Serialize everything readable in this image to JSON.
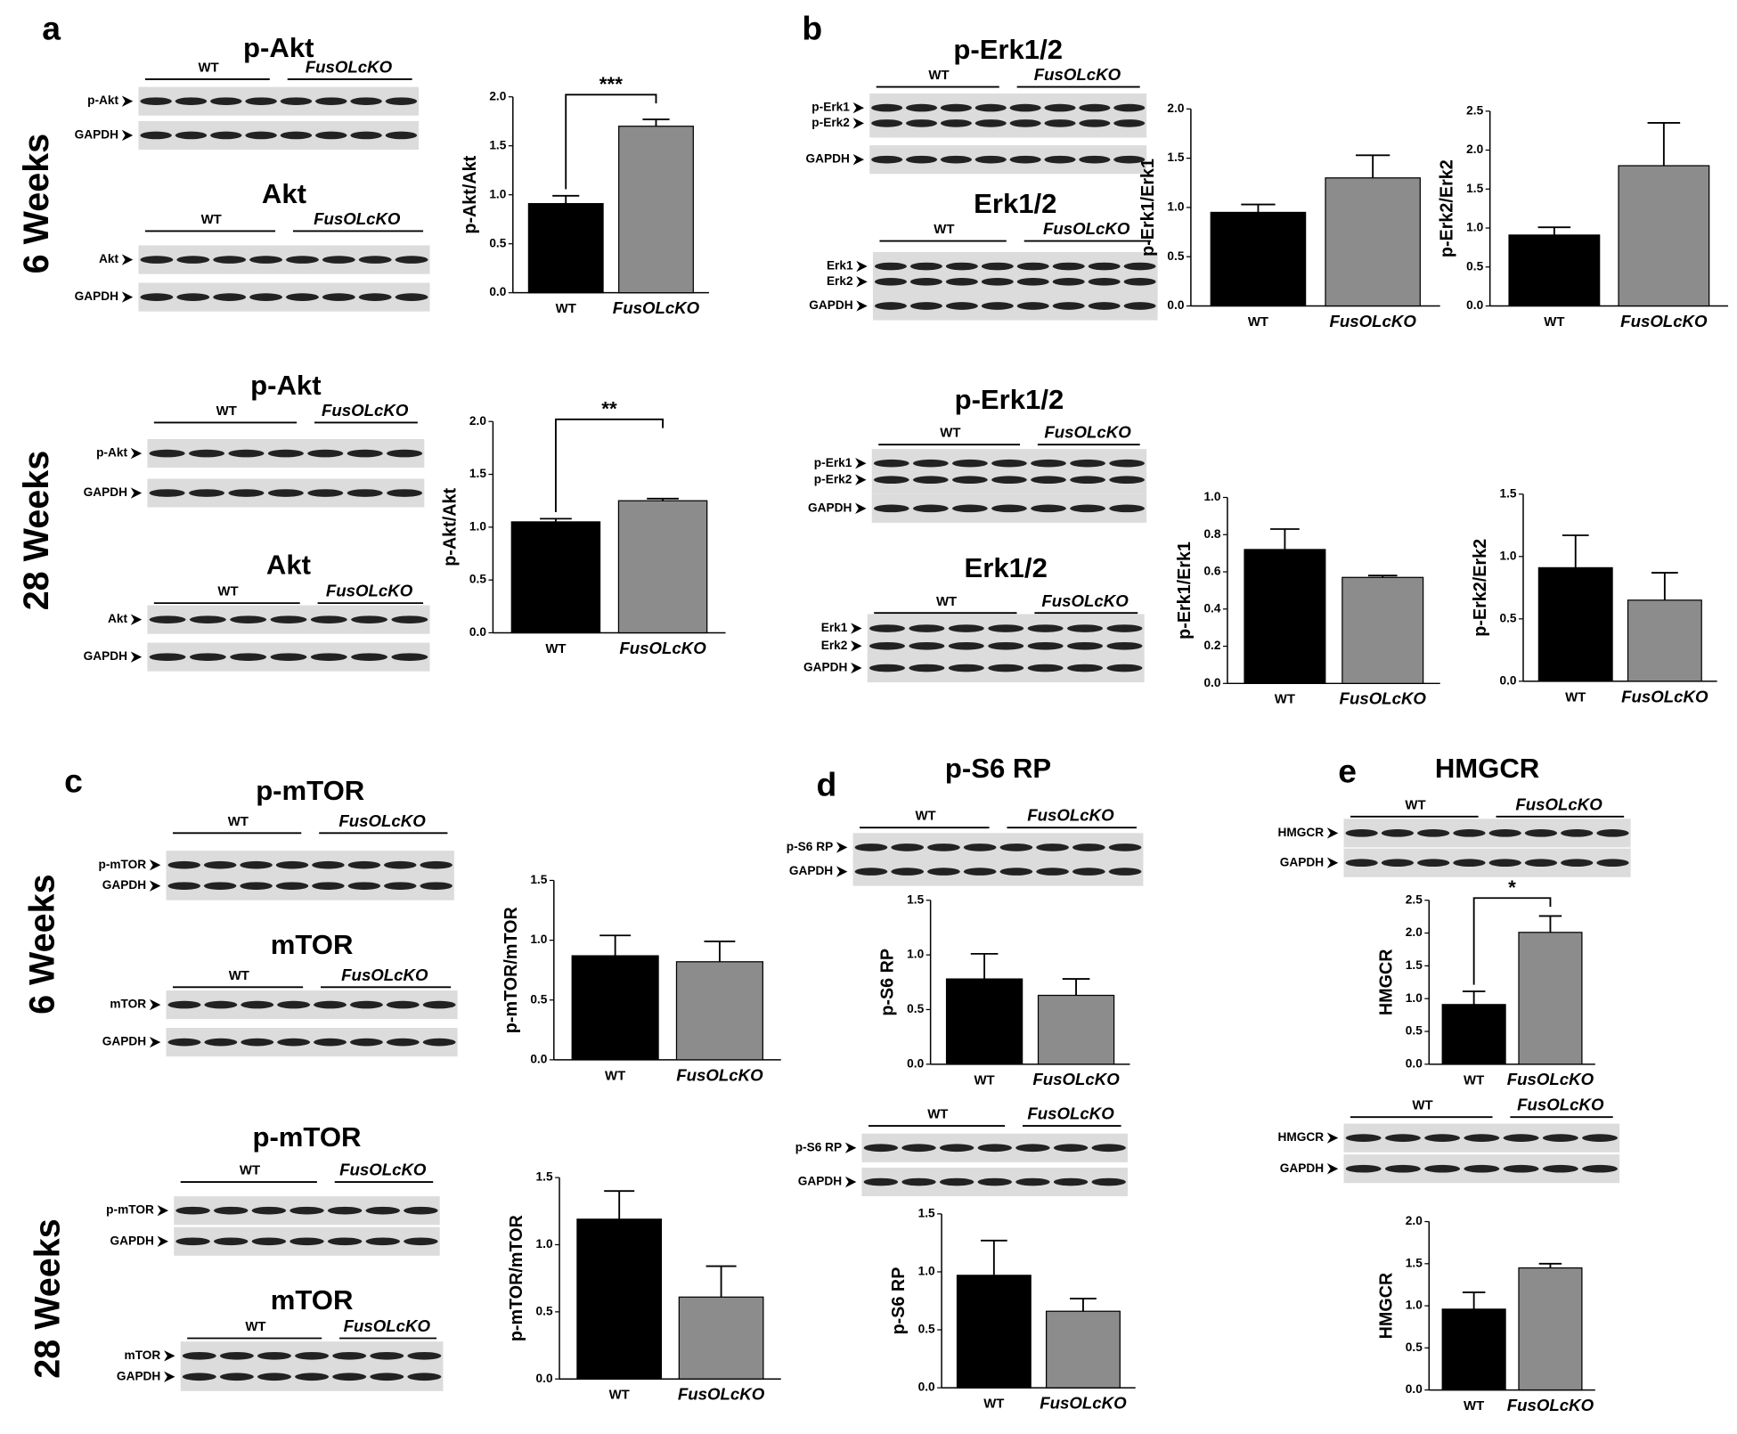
{
  "panels": {
    "a": "a",
    "b": "b",
    "c": "c",
    "d": "d",
    "e": "e"
  },
  "row_labels": [
    "6 Weeks",
    "28 Weeks",
    "6 Weeks",
    "28 Weeks"
  ],
  "blots": [
    {
      "title": "p-Akt",
      "groups": [
        "WT",
        "FusOLcKO"
      ],
      "rows": [
        "p-Akt",
        "GAPDH"
      ]
    },
    {
      "title": "Akt",
      "groups": [
        "WT",
        "FusOLcKO"
      ],
      "rows": [
        "Akt",
        "GAPDH"
      ]
    },
    {
      "title": "p-Akt",
      "groups": [
        "WT",
        "FusOLcKO"
      ],
      "rows": [
        "p-Akt",
        "GAPDH"
      ]
    },
    {
      "title": "Akt",
      "groups": [
        "WT",
        "FusOLcKO"
      ],
      "rows": [
        "Akt",
        "GAPDH"
      ]
    },
    {
      "title": "p-Erk1/2",
      "groups": [
        "WT",
        "FusOLcKO"
      ],
      "rows": [
        "p-Erk1",
        "p-Erk2",
        "GAPDH"
      ]
    },
    {
      "title": "Erk1/2",
      "groups": [
        "WT",
        "FusOLcKO"
      ],
      "rows": [
        "Erk1",
        "Erk2",
        "GAPDH"
      ]
    },
    {
      "title": "p-Erk1/2",
      "groups": [
        "WT",
        "FusOLcKO"
      ],
      "rows": [
        "p-Erk1",
        "p-Erk2",
        "GAPDH"
      ]
    },
    {
      "title": "Erk1/2",
      "groups": [
        "WT",
        "FusOLcKO"
      ],
      "rows": [
        "Erk1",
        "Erk2",
        "GAPDH"
      ]
    },
    {
      "title": "p-mTOR",
      "groups": [
        "WT",
        "FusOLcKO"
      ],
      "rows": [
        "p-mTOR",
        "GAPDH"
      ]
    },
    {
      "title": "mTOR",
      "groups": [
        "WT",
        "FusOLcKO"
      ],
      "rows": [
        "mTOR",
        "GAPDH"
      ]
    },
    {
      "title": "p-mTOR",
      "groups": [
        "WT",
        "FusOLcKO"
      ],
      "rows": [
        "p-mTOR",
        "GAPDH"
      ]
    },
    {
      "title": "mTOR",
      "groups": [
        "WT",
        "FusOLcKO"
      ],
      "rows": [
        "mTOR",
        "GAPDH"
      ]
    },
    {
      "title": "p-S6 RP",
      "groups": [
        "WT",
        "FusOLcKO"
      ],
      "rows": [
        "p-S6 RP",
        "GAPDH"
      ]
    },
    {
      "groups": [
        "WT",
        "FusOLcKO"
      ],
      "rows": [
        "p-S6 RP",
        "GAPDH"
      ]
    },
    {
      "title": "HMGCR",
      "groups": [
        "WT",
        "FusOLcKO"
      ],
      "rows": [
        "HMGCR",
        "GAPDH"
      ]
    },
    {
      "groups": [
        "WT",
        "FusOLcKO"
      ],
      "rows": [
        "HMGCR",
        "GAPDH"
      ]
    }
  ],
  "chart_data": [
    {
      "type": "bar",
      "ylabel": "p-Akt/Akt",
      "categories": [
        "WT",
        "FusOLcKO"
      ],
      "values": [
        0.91,
        1.7
      ],
      "errors": [
        0.08,
        0.07
      ],
      "colors": [
        "#000000",
        "#8c8c8c"
      ],
      "significance": "***",
      "ylim": [
        0,
        2
      ],
      "yticks": [
        {
          "value": 0,
          "label": "0.0"
        },
        0.5,
        {
          "value": 1,
          "label": "1.0"
        },
        1.5,
        {
          "value": 2,
          "label": "2.0"
        }
      ]
    },
    {
      "type": "bar",
      "ylabel": "p-Akt/Akt",
      "categories": [
        "WT",
        "FusOLcKO"
      ],
      "values": [
        1.05,
        1.25
      ],
      "errors": [
        0.03,
        0.02
      ],
      "colors": [
        "#000000",
        "#8c8c8c"
      ],
      "significance": "**",
      "ylim": [
        0,
        2
      ],
      "yticks": [
        {
          "value": 0,
          "label": "0.0"
        },
        0.5,
        {
          "value": 1,
          "label": "1.0"
        },
        1.5,
        {
          "value": 2,
          "label": "2.0"
        }
      ]
    },
    {
      "type": "bar",
      "ylabel": "p-Erk1/Erk1",
      "categories": [
        "WT",
        "FusOLcKO"
      ],
      "values": [
        0.95,
        1.3
      ],
      "errors": [
        0.08,
        0.23
      ],
      "colors": [
        "#000000",
        "#8c8c8c"
      ],
      "ylim": [
        0,
        2
      ],
      "yticks": [
        {
          "value": 0,
          "label": "0.0"
        },
        0.5,
        {
          "value": 1,
          "label": "1.0"
        },
        1.5,
        {
          "value": 2,
          "label": "2.0"
        }
      ]
    },
    {
      "type": "bar",
      "ylabel": "p-Erk2/Erk2",
      "categories": [
        "WT",
        "FusOLcKO"
      ],
      "values": [
        0.91,
        1.8
      ],
      "errors": [
        0.1,
        0.55
      ],
      "colors": [
        "#000000",
        "#8c8c8c"
      ],
      "ylim": [
        0,
        2.5
      ],
      "yticks": [
        {
          "value": 0,
          "label": "0.0"
        },
        0.5,
        {
          "value": 1,
          "label": "1.0"
        },
        1.5,
        {
          "value": 2,
          "label": "2.0"
        },
        2.5
      ]
    },
    {
      "type": "bar",
      "ylabel": "p-Erk1/Erk1",
      "categories": [
        "WT",
        "FusOLcKO"
      ],
      "values": [
        0.72,
        0.57
      ],
      "errors": [
        0.11,
        0.01
      ],
      "colors": [
        "#000000",
        "#8c8c8c"
      ],
      "ylim": [
        0,
        1
      ],
      "yticks": [
        {
          "value": 0,
          "label": "0.0"
        },
        0.2,
        0.4,
        0.6,
        0.8,
        {
          "value": 1,
          "label": "1.0"
        }
      ]
    },
    {
      "type": "bar",
      "ylabel": "p-Erk2/Erk2",
      "categories": [
        "WT",
        "FusOLcKO"
      ],
      "values": [
        0.91,
        0.65
      ],
      "errors": [
        0.26,
        0.22
      ],
      "colors": [
        "#000000",
        "#8c8c8c"
      ],
      "ylim": [
        0,
        1.5
      ],
      "yticks": [
        {
          "value": 0,
          "label": "0.0"
        },
        0.5,
        {
          "value": 1,
          "label": "1.0"
        },
        1.5
      ]
    },
    {
      "type": "bar",
      "ylabel": "p-mTOR/mTOR",
      "categories": [
        "WT",
        "FusOLcKO"
      ],
      "values": [
        0.87,
        0.82
      ],
      "errors": [
        0.17,
        0.17
      ],
      "colors": [
        "#000000",
        "#8c8c8c"
      ],
      "ylim": [
        0,
        1.5
      ],
      "yticks": [
        {
          "value": 0,
          "label": "0.0"
        },
        0.5,
        {
          "value": 1,
          "label": "1.0"
        },
        1.5
      ]
    },
    {
      "type": "bar",
      "ylabel": "p-mTOR/mTOR",
      "categories": [
        "WT",
        "FusOLcKO"
      ],
      "values": [
        1.19,
        0.61
      ],
      "errors": [
        0.21,
        0.23
      ],
      "colors": [
        "#000000",
        "#8c8c8c"
      ],
      "ylim": [
        0,
        1.5
      ],
      "yticks": [
        {
          "value": 0,
          "label": "0.0"
        },
        0.5,
        {
          "value": 1,
          "label": "1.0"
        },
        1.5
      ]
    },
    {
      "type": "bar",
      "ylabel": "p-S6 RP",
      "categories": [
        "WT",
        "FusOLcKO"
      ],
      "values": [
        0.78,
        0.63
      ],
      "errors": [
        0.23,
        0.15
      ],
      "colors": [
        "#000000",
        "#8c8c8c"
      ],
      "ylim": [
        0,
        1.5
      ],
      "yticks": [
        {
          "value": 0,
          "label": "0.0"
        },
        0.5,
        {
          "value": 1,
          "label": "1.0"
        },
        1.5
      ]
    },
    {
      "type": "bar",
      "ylabel": "p-S6 RP",
      "categories": [
        "WT",
        "FusOLcKO"
      ],
      "values": [
        0.97,
        0.66
      ],
      "errors": [
        0.3,
        0.11
      ],
      "colors": [
        "#000000",
        "#8c8c8c"
      ],
      "ylim": [
        0,
        1.5
      ],
      "yticks": [
        {
          "value": 0,
          "label": "0.0"
        },
        0.5,
        {
          "value": 1,
          "label": "1.0"
        },
        1.5
      ]
    },
    {
      "type": "bar",
      "ylabel": "HMGCR",
      "categories": [
        "WT",
        "FusOLcKO"
      ],
      "values": [
        0.91,
        2.01
      ],
      "errors": [
        0.2,
        0.25
      ],
      "colors": [
        "#000000",
        "#8c8c8c"
      ],
      "significance": "*",
      "ylim": [
        0,
        2.5
      ],
      "yticks": [
        {
          "value": 0,
          "label": "0.0"
        },
        0.5,
        {
          "value": 1,
          "label": "1.0"
        },
        1.5,
        {
          "value": 2,
          "label": "2.0"
        },
        2.5
      ]
    },
    {
      "type": "bar",
      "ylabel": "HMGCR",
      "categories": [
        "WT",
        "FusOLcKO"
      ],
      "values": [
        0.96,
        1.45
      ],
      "errors": [
        0.2,
        0.05
      ],
      "colors": [
        "#000000",
        "#8c8c8c"
      ],
      "ylim": [
        0,
        2
      ],
      "yticks": [
        {
          "value": 0,
          "label": "0.0"
        },
        0.5,
        {
          "value": 1,
          "label": "1.0"
        },
        1.5,
        {
          "value": 2,
          "label": "2.0"
        }
      ]
    }
  ]
}
